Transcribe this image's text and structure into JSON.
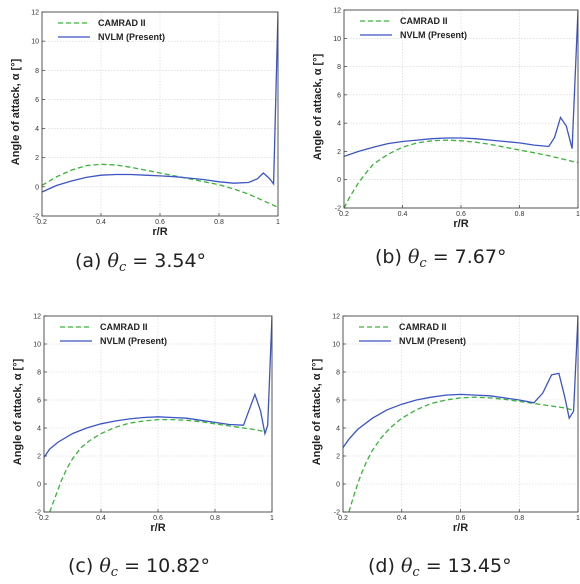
{
  "figure": {
    "series_colors": {
      "CAMRAD II": "#3ab33a",
      "NVLM (Present)": "#3c55c4"
    }
  },
  "chart_data": [
    {
      "type": "line",
      "caption_prefix": "(a)",
      "caption_theta": "θ",
      "caption_sub": "c",
      "caption_value": "= 3.54°",
      "xlabel": "r/R",
      "ylabel": "Angle of attack, α [°]",
      "xlim": [
        0.2,
        1.0
      ],
      "ylim": [
        -2,
        12
      ],
      "xticks": [
        0.2,
        0.4,
        0.6,
        0.8,
        1
      ],
      "xtick_labels": [
        "0.2",
        "0.4",
        "0.6",
        "0.8",
        "1"
      ],
      "yticks": [
        -2,
        0,
        2,
        4,
        6,
        8,
        10,
        12
      ],
      "ytick_labels": [
        "-2",
        "0",
        "2",
        "4",
        "6",
        "8",
        "10",
        "12"
      ],
      "grid": true,
      "legend_position": "top-left",
      "series": [
        {
          "name": "CAMRAD II",
          "style": "dashed",
          "x": [
            0.2,
            0.25,
            0.3,
            0.35,
            0.4,
            0.45,
            0.5,
            0.55,
            0.6,
            0.65,
            0.7,
            0.75,
            0.8,
            0.85,
            0.9,
            0.95,
            1.0
          ],
          "y": [
            0.1,
            0.7,
            1.15,
            1.45,
            1.55,
            1.5,
            1.35,
            1.15,
            0.95,
            0.75,
            0.55,
            0.35,
            0.15,
            -0.15,
            -0.5,
            -0.95,
            -1.4
          ]
        },
        {
          "name": "NVLM (Present)",
          "style": "solid",
          "x": [
            0.2,
            0.25,
            0.3,
            0.35,
            0.4,
            0.45,
            0.5,
            0.55,
            0.6,
            0.65,
            0.7,
            0.75,
            0.8,
            0.85,
            0.9,
            0.93,
            0.95,
            0.97,
            0.985,
            1.0
          ],
          "y": [
            -0.35,
            0.1,
            0.4,
            0.65,
            0.8,
            0.85,
            0.85,
            0.8,
            0.75,
            0.7,
            0.6,
            0.5,
            0.35,
            0.25,
            0.3,
            0.55,
            0.95,
            0.6,
            0.2,
            12
          ]
        }
      ]
    },
    {
      "type": "line",
      "caption_prefix": "(b)",
      "caption_theta": "θ",
      "caption_sub": "c",
      "caption_value": "= 7.67°",
      "xlabel": "r/R",
      "ylabel": "Angle of attack, α [°]",
      "xlim": [
        0.2,
        1.0
      ],
      "ylim": [
        -2,
        12
      ],
      "xticks": [
        0.2,
        0.4,
        0.6,
        0.8,
        1
      ],
      "xtick_labels": [
        "0.2",
        "0.4",
        "0.6",
        "0.8",
        "1"
      ],
      "yticks": [
        -2,
        0,
        2,
        4,
        6,
        8,
        10,
        12
      ],
      "ytick_labels": [
        "-2",
        "0",
        "2",
        "4",
        "6",
        "8",
        "10",
        "12"
      ],
      "grid": true,
      "legend_position": "top-left",
      "series": [
        {
          "name": "CAMRAD II",
          "style": "dashed",
          "x": [
            0.2,
            0.22,
            0.25,
            0.28,
            0.3,
            0.35,
            0.4,
            0.45,
            0.5,
            0.55,
            0.6,
            0.65,
            0.7,
            0.75,
            0.8,
            0.85,
            0.9,
            0.95,
            1.0
          ],
          "y": [
            -2.0,
            -1.2,
            -0.2,
            0.6,
            1.1,
            1.8,
            2.3,
            2.6,
            2.75,
            2.8,
            2.75,
            2.65,
            2.5,
            2.3,
            2.1,
            1.9,
            1.7,
            1.45,
            1.2
          ]
        },
        {
          "name": "NVLM (Present)",
          "style": "solid",
          "x": [
            0.2,
            0.25,
            0.3,
            0.35,
            0.4,
            0.45,
            0.5,
            0.55,
            0.6,
            0.65,
            0.7,
            0.75,
            0.8,
            0.85,
            0.9,
            0.92,
            0.94,
            0.96,
            0.98,
            1.0
          ],
          "y": [
            1.65,
            2.0,
            2.3,
            2.55,
            2.7,
            2.8,
            2.9,
            2.95,
            2.95,
            2.9,
            2.8,
            2.7,
            2.6,
            2.45,
            2.35,
            3.0,
            4.4,
            3.8,
            2.2,
            12
          ]
        }
      ]
    },
    {
      "type": "line",
      "caption_prefix": "(c)",
      "caption_theta": "θ",
      "caption_sub": "c",
      "caption_value": "= 10.82°",
      "xlabel": "r/R",
      "ylabel": "Angle of attack, α [°]",
      "xlim": [
        0.2,
        1.0
      ],
      "ylim": [
        -2,
        12
      ],
      "xticks": [
        0.2,
        0.4,
        0.6,
        0.8,
        1
      ],
      "xtick_labels": [
        "0.2",
        "0.4",
        "0.6",
        "0.8",
        "1"
      ],
      "yticks": [
        -2,
        0,
        2,
        4,
        6,
        8,
        10,
        12
      ],
      "ytick_labels": [
        "-2",
        "0",
        "2",
        "4",
        "6",
        "8",
        "10",
        "12"
      ],
      "grid": true,
      "legend_position": "top-left",
      "series": [
        {
          "name": "CAMRAD II",
          "style": "dashed",
          "x": [
            0.22,
            0.24,
            0.26,
            0.28,
            0.3,
            0.33,
            0.36,
            0.4,
            0.45,
            0.5,
            0.55,
            0.6,
            0.65,
            0.7,
            0.75,
            0.8,
            0.85,
            0.9,
            0.95,
            0.98
          ],
          "y": [
            -2.0,
            -0.9,
            0.2,
            1.1,
            1.8,
            2.6,
            3.1,
            3.6,
            4.05,
            4.35,
            4.5,
            4.6,
            4.6,
            4.55,
            4.45,
            4.3,
            4.15,
            4.0,
            3.85,
            3.7
          ]
        },
        {
          "name": "NVLM (Present)",
          "style": "solid",
          "x": [
            0.2,
            0.22,
            0.25,
            0.3,
            0.35,
            0.4,
            0.45,
            0.5,
            0.55,
            0.6,
            0.65,
            0.7,
            0.75,
            0.8,
            0.85,
            0.9,
            0.92,
            0.94,
            0.96,
            0.975,
            0.985,
            1.0
          ],
          "y": [
            1.9,
            2.5,
            3.0,
            3.6,
            4.0,
            4.3,
            4.5,
            4.65,
            4.75,
            4.8,
            4.75,
            4.7,
            4.55,
            4.4,
            4.25,
            4.2,
            5.3,
            6.4,
            5.2,
            3.6,
            4.2,
            12
          ]
        }
      ]
    },
    {
      "type": "line",
      "caption_prefix": "(d)",
      "caption_theta": "θ",
      "caption_sub": "c",
      "caption_value": "= 13.45°",
      "xlabel": "r/R",
      "ylabel": "Angle of attack, α [°]",
      "xlim": [
        0.2,
        1.0
      ],
      "ylim": [
        -2,
        12
      ],
      "xticks": [
        0.2,
        0.4,
        0.6,
        0.8,
        1
      ],
      "xtick_labels": [
        "0.2",
        "0.4",
        "0.6",
        "0.8",
        "1"
      ],
      "yticks": [
        -2,
        0,
        2,
        4,
        6,
        8,
        10,
        12
      ],
      "ytick_labels": [
        "-2",
        "0",
        "2",
        "4",
        "6",
        "8",
        "10",
        "12"
      ],
      "grid": true,
      "legend_position": "top-left",
      "series": [
        {
          "name": "CAMRAD II",
          "style": "dashed",
          "x": [
            0.22,
            0.24,
            0.26,
            0.28,
            0.3,
            0.33,
            0.36,
            0.4,
            0.45,
            0.5,
            0.55,
            0.6,
            0.65,
            0.7,
            0.75,
            0.8,
            0.85,
            0.9,
            0.95,
            0.98
          ],
          "y": [
            -2.0,
            -0.6,
            0.6,
            1.6,
            2.4,
            3.3,
            4.0,
            4.7,
            5.3,
            5.75,
            6.0,
            6.15,
            6.2,
            6.15,
            6.05,
            5.9,
            5.75,
            5.6,
            5.45,
            5.3
          ]
        },
        {
          "name": "NVLM (Present)",
          "style": "solid",
          "x": [
            0.2,
            0.22,
            0.25,
            0.3,
            0.35,
            0.4,
            0.45,
            0.5,
            0.55,
            0.6,
            0.65,
            0.7,
            0.75,
            0.8,
            0.85,
            0.88,
            0.91,
            0.935,
            0.955,
            0.97,
            0.985,
            1.0
          ],
          "y": [
            2.6,
            3.2,
            3.9,
            4.7,
            5.3,
            5.7,
            6.0,
            6.2,
            6.35,
            6.4,
            6.35,
            6.3,
            6.15,
            6.0,
            5.8,
            6.5,
            7.8,
            7.9,
            6.2,
            4.7,
            5.2,
            12
          ]
        }
      ]
    }
  ]
}
